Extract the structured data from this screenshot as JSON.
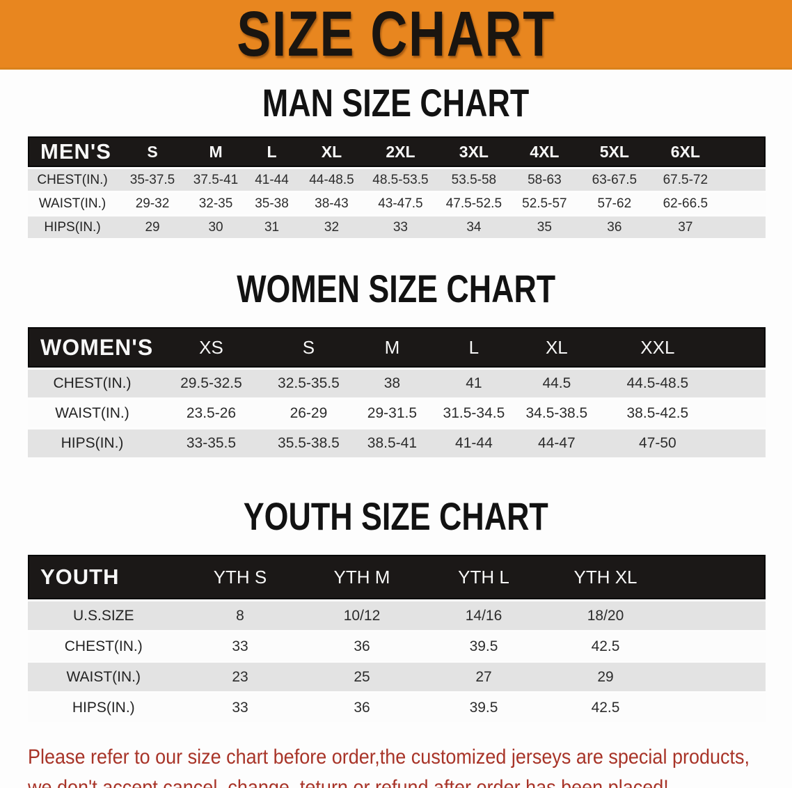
{
  "banner": {
    "title": "SIZE CHART"
  },
  "colors": {
    "banner_bg": "#e8861f",
    "header_bar": "#1b1817",
    "row_shade": "#e3e3e3",
    "row_white": "#fcfcfc",
    "disclaimer_red": "#a83428"
  },
  "men": {
    "heading": "MAN SIZE CHART",
    "table": {
      "corner": "MEN'S",
      "sizes": [
        "S",
        "M",
        "L",
        "XL",
        "2XL",
        "3XL",
        "4XL",
        "5XL",
        "6XL"
      ],
      "rows": [
        {
          "label": "CHEST(IN.)",
          "values": [
            "35-37.5",
            "37.5-41",
            "41-44",
            "44-48.5",
            "48.5-53.5",
            "53.5-58",
            "58-63",
            "63-67.5",
            "67.5-72"
          ]
        },
        {
          "label": "WAIST(IN.)",
          "values": [
            "29-32",
            "32-35",
            "35-38",
            "38-43",
            "43-47.5",
            "47.5-52.5",
            "52.5-57",
            "57-62",
            "62-66.5"
          ]
        },
        {
          "label": "HIPS(IN.)",
          "values": [
            "29",
            "30",
            "31",
            "32",
            "33",
            "34",
            "35",
            "36",
            "37"
          ]
        }
      ]
    }
  },
  "women": {
    "heading": "WOMEN SIZE CHART",
    "table": {
      "corner": "WOMEN'S",
      "sizes": [
        "XS",
        "S",
        "M",
        "L",
        "XL",
        "XXL"
      ],
      "rows": [
        {
          "label": "CHEST(IN.)",
          "values": [
            "29.5-32.5",
            "32.5-35.5",
            "38",
            "41",
            "44.5",
            "44.5-48.5"
          ]
        },
        {
          "label": "WAIST(IN.)",
          "values": [
            "23.5-26",
            "26-29",
            "29-31.5",
            "31.5-34.5",
            "34.5-38.5",
            "38.5-42.5"
          ]
        },
        {
          "label": "HIPS(IN.)",
          "values": [
            "33-35.5",
            "35.5-38.5",
            "38.5-41",
            "41-44",
            "44-47",
            "47-50"
          ]
        }
      ]
    }
  },
  "youth": {
    "heading": "YOUTH SIZE CHART",
    "table": {
      "corner": "YOUTH",
      "sizes": [
        "YTH S",
        "YTH M",
        "YTH L",
        "YTH XL"
      ],
      "rows": [
        {
          "label": "U.S.SIZE",
          "values": [
            "8",
            "10/12",
            "14/16",
            "18/20"
          ]
        },
        {
          "label": "CHEST(IN.)",
          "values": [
            "33",
            "36",
            "39.5",
            "42.5"
          ]
        },
        {
          "label": "WAIST(IN.)",
          "values": [
            "23",
            "25",
            "27",
            "29"
          ]
        },
        {
          "label": "HIPS(IN.)",
          "values": [
            "33",
            "36",
            "39.5",
            "42.5"
          ]
        }
      ]
    }
  },
  "disclaimer": {
    "line1": "Please refer to our size chart before order,the customized jerseys are special products,",
    "line2": "we don't accept cancel, change, teturn or refund after order has been placed!"
  }
}
